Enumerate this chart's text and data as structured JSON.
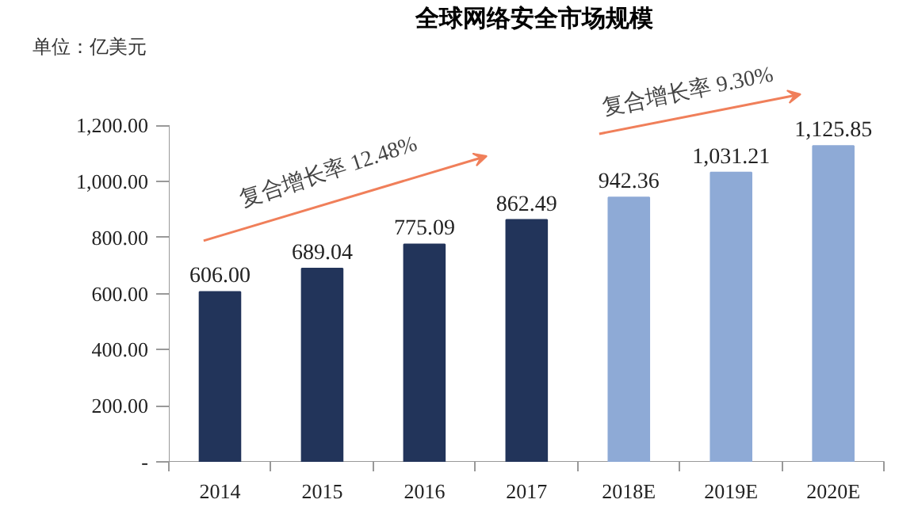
{
  "chart_data": {
    "type": "bar",
    "title": "全球网络安全市场规模",
    "categories": [
      "2014",
      "2015",
      "2016",
      "2017",
      "2018E",
      "2019E",
      "2020E"
    ],
    "values": [
      606.0,
      689.04,
      775.09,
      862.49,
      942.36,
      1031.21,
      1125.85
    ],
    "colors": [
      "#22345a",
      "#22345a",
      "#22345a",
      "#22345a",
      "#8eaad6",
      "#8eaad6",
      "#8eaad6"
    ],
    "value_labels": [
      "606.00",
      "689.04",
      "775.09",
      "862.49",
      "942.36",
      "1,031.21",
      "1,125.85"
    ],
    "ylim": [
      0,
      1200
    ],
    "yticks": [
      {
        "value": 0,
        "label": "-"
      },
      {
        "value": 200,
        "label": "200.00"
      },
      {
        "value": 400,
        "label": "400.00"
      },
      {
        "value": 600,
        "label": "600.00"
      },
      {
        "value": 800,
        "label": "800.00"
      },
      {
        "value": 1000,
        "label": "1,000.00"
      },
      {
        "value": 1200,
        "label": "1,200.00"
      }
    ],
    "annotations": [
      "单位：亿美元",
      "复合增长率 12.48%",
      "复合增长率 9.30%"
    ],
    "grid": false
  }
}
